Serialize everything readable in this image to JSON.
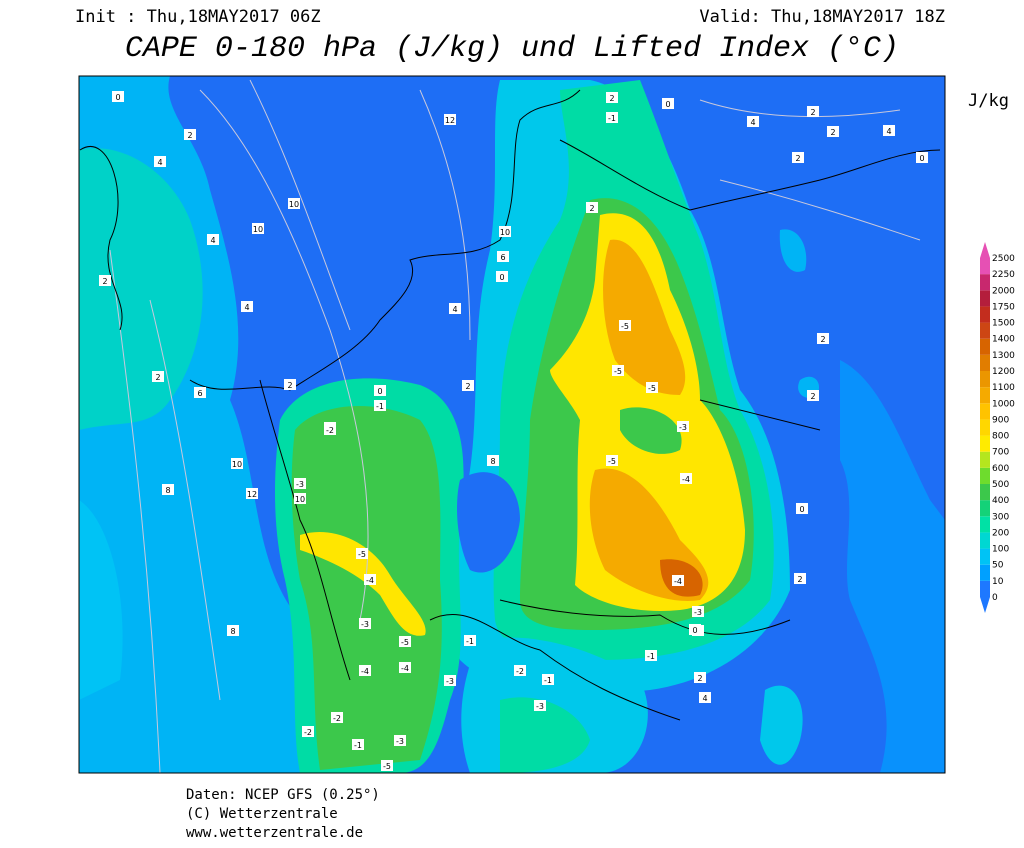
{
  "header": {
    "init": "Init : Thu,18MAY2017 06Z",
    "valid": "Valid: Thu,18MAY2017 18Z",
    "title": "CAPE 0-180 hPa (J/kg) und Lifted Index (°C)"
  },
  "legend": {
    "unit": "J/kg",
    "levels": [
      "0",
      "10",
      "50",
      "100",
      "200",
      "300",
      "400",
      "500",
      "600",
      "700",
      "800",
      "900",
      "1000",
      "1100",
      "1200",
      "1300",
      "1400",
      "1500",
      "1750",
      "2000",
      "2250",
      "2500"
    ],
    "colors": [
      "#1e78ff",
      "#00a0ff",
      "#00c3f5",
      "#00d7d2",
      "#00e1a5",
      "#14d278",
      "#3cc84b",
      "#6edc2d",
      "#b4e61e",
      "#ffeb00",
      "#ffd700",
      "#ffc300",
      "#f5aa00",
      "#eb9600",
      "#e17d00",
      "#d76400",
      "#cd4614",
      "#c32d1e",
      "#b41e3c",
      "#c8286e",
      "#e650b4"
    ]
  },
  "map": {
    "labels": [
      "0",
      "2",
      "4",
      "2",
      "4",
      "10",
      "10",
      "12",
      "2",
      "4",
      "4",
      "6",
      "2",
      "8",
      "10",
      "12",
      "8",
      "10",
      "0",
      "2",
      "-1",
      "-2",
      "-3",
      "-5",
      "-4",
      "-3",
      "-5",
      "-4",
      "-4",
      "-2",
      "-2",
      "-1",
      "-3",
      "-5",
      "-3",
      "-1",
      "-5",
      "-5",
      "-5",
      "-3",
      "-4",
      "-5",
      "-4",
      "-3",
      "0",
      "2",
      "0",
      "-1",
      "2",
      "10",
      "6",
      "0",
      "2",
      "8",
      "4",
      "2",
      "0",
      "4",
      "2",
      "2",
      "2",
      "2",
      "0",
      "2",
      "-1",
      "-3",
      "-2",
      "-1",
      "2",
      "4",
      "0"
    ]
  },
  "footer": {
    "line1": "Daten: NCEP GFS (0.25°)",
    "line2": "(C) Wetterzentrale",
    "line3": "www.wetterzentrale.de"
  }
}
